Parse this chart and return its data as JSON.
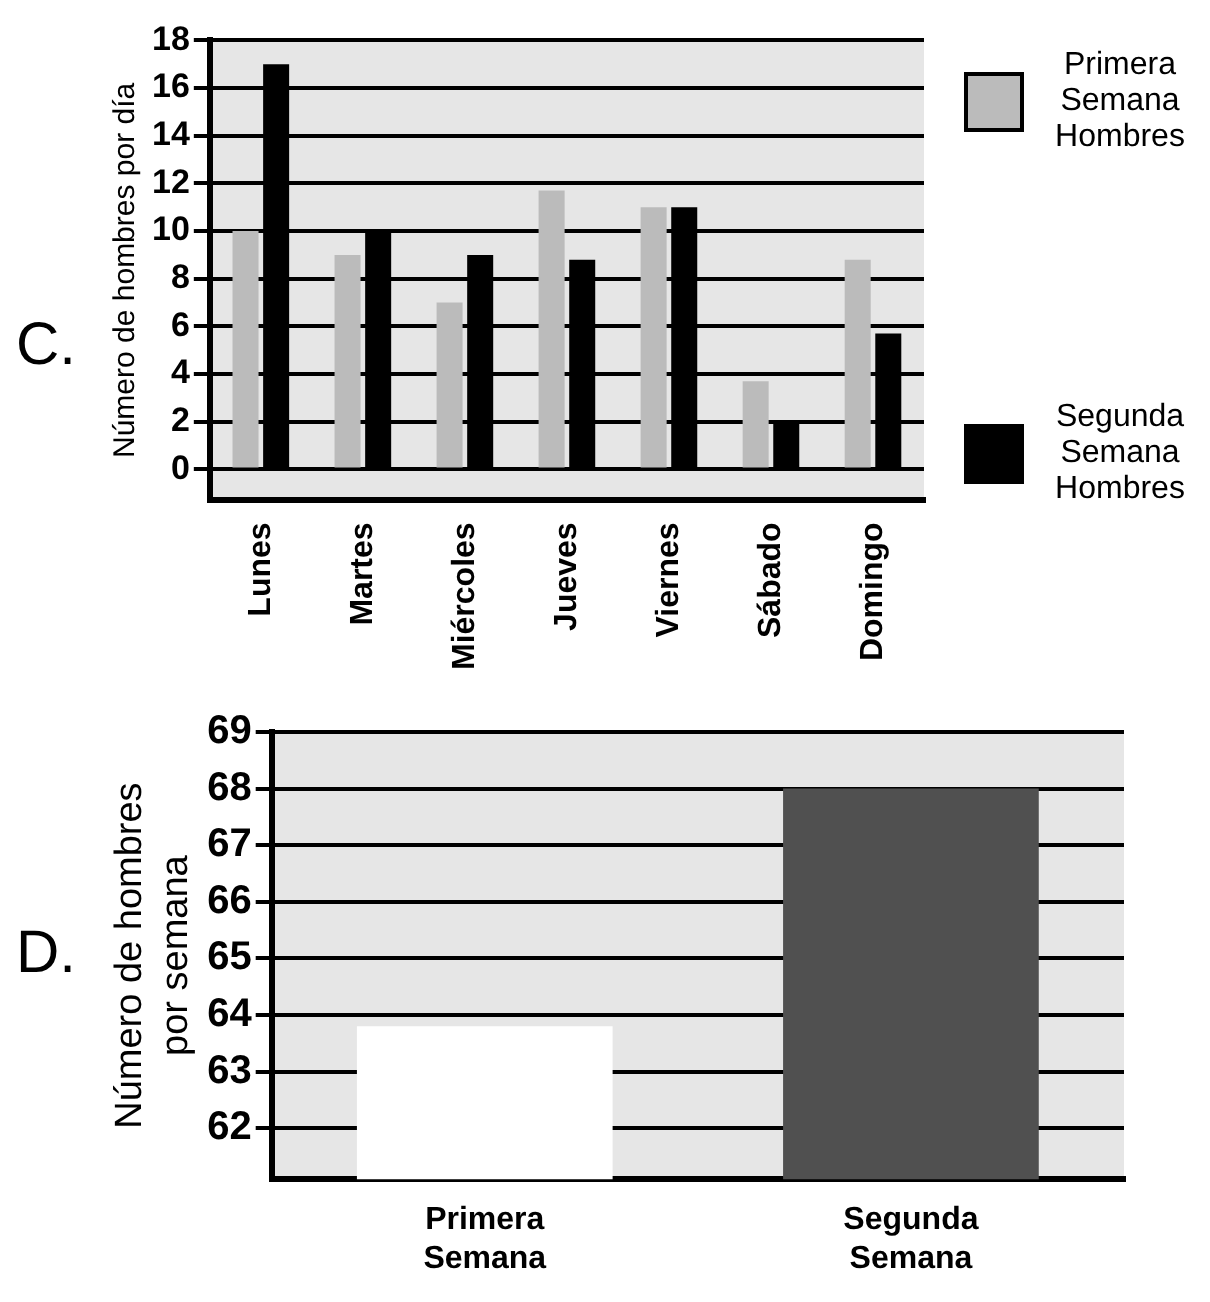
{
  "chart_data": [
    {
      "type": "bar",
      "annotations": [
        "C."
      ],
      "ylabel": "Número de hombres por día",
      "categories": [
        "Lunes",
        "Martes",
        "Miércoles",
        "Jueves",
        "Viernes",
        "Sábado",
        "Domingo"
      ],
      "series": [
        {
          "name": "Primera Semana Hombres",
          "color": "#bbbbbb",
          "values": [
            10,
            9,
            7,
            11.7,
            11,
            3.7,
            8.8
          ]
        },
        {
          "name": "Segunda Semana Hombres",
          "color": "#000000",
          "values": [
            17,
            10,
            9,
            8.8,
            11,
            2,
            5.7
          ]
        }
      ],
      "ylim": [
        -1.3,
        18
      ],
      "yticks": [
        0,
        2,
        4,
        6,
        8,
        10,
        12,
        14,
        16,
        18
      ],
      "grid": "y",
      "legend": "right"
    },
    {
      "type": "bar",
      "annotations": [
        "D."
      ],
      "ylabel": "Número de hombres por semana",
      "categories": [
        "Primera Semana",
        "Segunda Semana"
      ],
      "values": [
        63.8,
        68
      ],
      "colors": [
        "#ffffff",
        "#505050"
      ],
      "ylim": [
        61.1,
        69
      ],
      "yticks": [
        62,
        63,
        64,
        65,
        66,
        67,
        68,
        69
      ],
      "grid": "y"
    }
  ]
}
